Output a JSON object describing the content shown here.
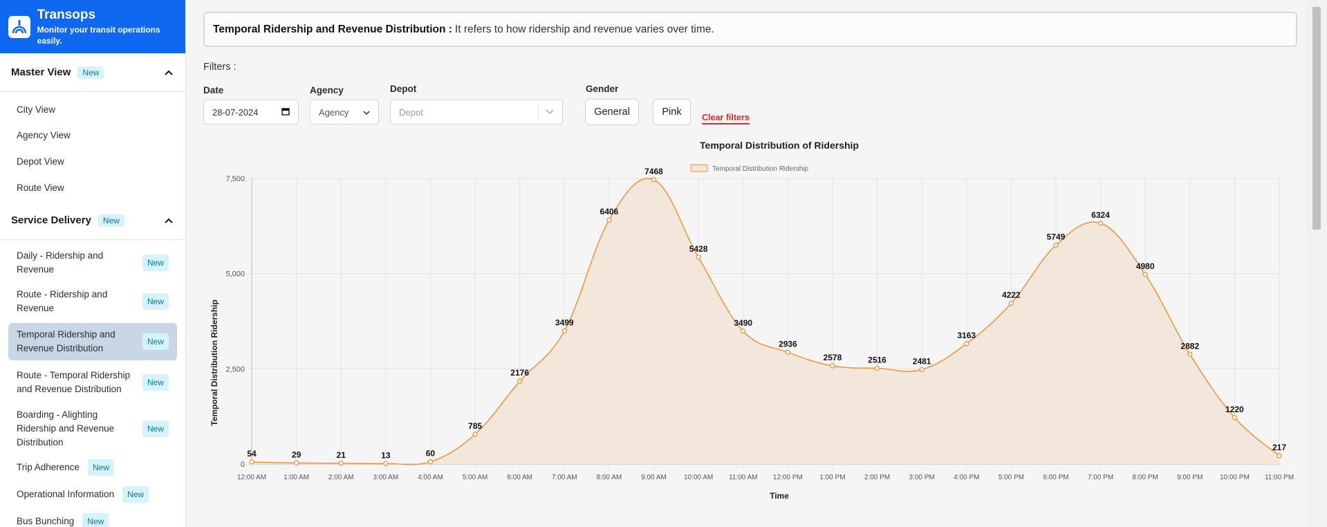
{
  "brand": {
    "title": "Transops",
    "subtitle": "Monitor your transit operations easily."
  },
  "sidebar": {
    "master": {
      "title": "Master View",
      "badge": "New",
      "items": [
        {
          "label": "City View"
        },
        {
          "label": "Agency View"
        },
        {
          "label": "Depot View"
        },
        {
          "label": "Route View"
        }
      ]
    },
    "service": {
      "title": "Service Delivery",
      "badge": "New",
      "items": [
        {
          "label": "Daily - Ridership and Revenue",
          "badge": "New"
        },
        {
          "label": "Route - Ridership and Revenue",
          "badge": "New"
        },
        {
          "label": "Temporal Ridership and Revenue Distribution",
          "badge": "New"
        },
        {
          "label": "Route - Temporal Ridership and Revenue Distribution",
          "badge": "New"
        },
        {
          "label": "Boarding - Alighting Ridership and Revenue Distribution",
          "badge": "New"
        },
        {
          "label": "Trip Adherence",
          "badge": "New"
        },
        {
          "label": "Operational Information",
          "badge": "New"
        },
        {
          "label": "Bus Bunching",
          "badge": "New"
        }
      ]
    }
  },
  "info": {
    "title": "Temporal Ridership and Revenue Distribution :",
    "description": "It refers to how ridership and revenue varies over time."
  },
  "filters": {
    "label": "Filters :",
    "date_label": "Date",
    "date_value": "28-07-2024",
    "agency_label": "Agency",
    "agency_value": "Agency",
    "depot_label": "Depot",
    "depot_placeholder": "Depot",
    "gender_label": "Gender",
    "general": "General",
    "pink": "Pink",
    "clear": "Clear filters"
  },
  "colors": {
    "brand": "#0e68f0",
    "line": "#f0923a",
    "fill": "#f3e4d7",
    "clear": "#e0282e"
  },
  "chart_data": {
    "type": "area",
    "title": "Temporal Distribution of Ridership",
    "xlabel": "Time",
    "ylabel": "Temporal Distribution Ridership",
    "legend": "top",
    "series": [
      {
        "name": "Temporal Distribution Ridership",
        "values": [
          54,
          29,
          21,
          13,
          60,
          785,
          2176,
          3499,
          6406,
          7468,
          5428,
          3490,
          2936,
          2578,
          2516,
          2481,
          3163,
          4222,
          5749,
          6324,
          4980,
          2882,
          1220,
          217
        ]
      }
    ],
    "categories": [
      "12:00 AM",
      "1:00 AM",
      "2:00 AM",
      "3:00 AM",
      "4:00 AM",
      "5:00 AM",
      "6:00 AM",
      "7:00 AM",
      "8:00 AM",
      "9:00 AM",
      "10:00 AM",
      "11:00 AM",
      "12:00 PM",
      "1:00 PM",
      "2:00 PM",
      "3:00 PM",
      "4:00 PM",
      "5:00 PM",
      "6:00 PM",
      "7:00 PM",
      "8:00 PM",
      "9:00 PM",
      "10:00 PM",
      "11:00 PM"
    ],
    "ylim": [
      0,
      7500
    ],
    "yticks": [
      0,
      2500,
      5000,
      7500
    ],
    "ytick_labels": [
      "0",
      "2,500",
      "5,000",
      "7,500"
    ],
    "grid": true
  }
}
